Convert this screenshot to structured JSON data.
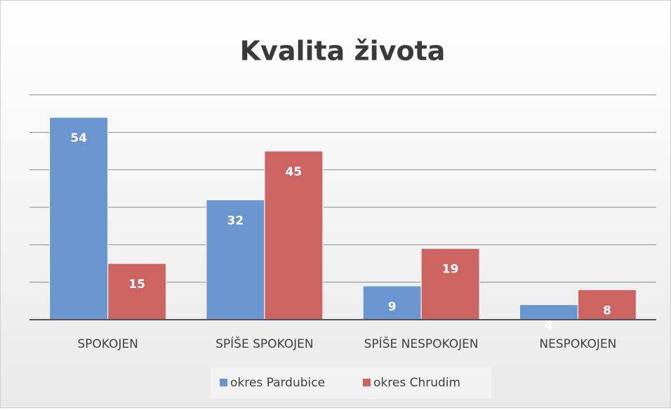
{
  "chart_data": {
    "type": "bar",
    "title": "Kvalita života",
    "categories": [
      "SPOKOJEN",
      "SPÍŠE SPOKOJEN",
      "SPÍŠE NESPOKOJEN",
      "NESPOKOJEN"
    ],
    "series": [
      {
        "name": "okres Pardubice",
        "color": "#6a96cf",
        "values": [
          54,
          32,
          9,
          4
        ]
      },
      {
        "name": "okres Chrudim",
        "color": "#cc6462",
        "values": [
          15,
          45,
          19,
          8
        ]
      }
    ],
    "ylim": [
      0,
      60
    ],
    "yticks": [
      0,
      10,
      20,
      30,
      40,
      50,
      60
    ],
    "grid": true,
    "legend": "bottom"
  }
}
